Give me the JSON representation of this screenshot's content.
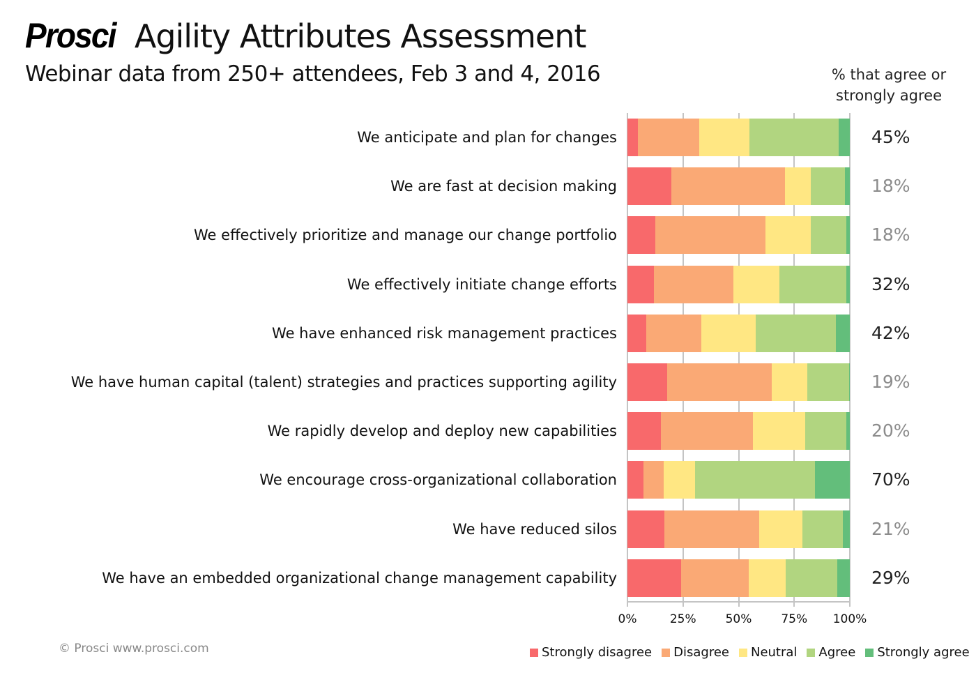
{
  "header": {
    "logo": "Prosci",
    "title": "Agility Attributes Assessment",
    "subtitle": "Webinar data from 250+ attendees, Feb 3 and 4, 2016",
    "agree_column_header": "% that agree or strongly agree"
  },
  "footer": {
    "copyright": "© Prosci www.prosci.com"
  },
  "colors": {
    "strongly_disagree": "#F8696B",
    "disagree": "#FAA975",
    "neutral": "#FFE783",
    "agree": "#B1D580",
    "strongly_agree": "#63BE7B",
    "pct_dark": "#222222",
    "pct_light": "#8C8C8C",
    "grid": "#C4C4C4"
  },
  "chart_data": {
    "type": "bar",
    "orientation": "horizontal",
    "stacked": "100%",
    "title": "Agility Attributes Assessment",
    "subtitle": "Webinar data from 250+ attendees, Feb 3 and 4, 2016",
    "xlabel": "",
    "ylabel": "",
    "xlim": [
      0,
      100
    ],
    "x_ticks": [
      "0%",
      "25%",
      "50%",
      "75%",
      "100%"
    ],
    "grid": true,
    "legend_position": "bottom-right",
    "categories": [
      "We anticipate and plan for changes",
      "We are fast at decision making",
      "We effectively prioritize and manage our change portfolio",
      "We effectively initiate change efforts",
      "We have enhanced risk management practices",
      "We have human capital (talent) strategies and practices supporting agility",
      "We rapidly develop and deploy new capabilities",
      "We encourage cross-organizational collaboration",
      "We have reduced silos",
      "We have an embedded organizational change management capability"
    ],
    "series": [
      {
        "name": "Strongly disagree",
        "color": "#F8696B",
        "values": [
          4.7,
          19.7,
          12.5,
          11.9,
          8.5,
          17.9,
          15.0,
          7.2,
          16.6,
          24.1
        ]
      },
      {
        "name": "Disagree",
        "color": "#FAA975",
        "values": [
          27.6,
          51.1,
          49.5,
          35.7,
          24.8,
          47.0,
          41.4,
          9.1,
          42.6,
          30.4
        ]
      },
      {
        "name": "Neutral",
        "color": "#FFE783",
        "values": [
          22.6,
          11.6,
          20.4,
          20.7,
          24.5,
          16.0,
          23.5,
          14.1,
          19.4,
          16.6
        ]
      },
      {
        "name": "Agree",
        "color": "#B1D580",
        "values": [
          40.1,
          15.4,
          16.0,
          30.1,
          36.0,
          18.8,
          18.5,
          53.9,
          18.2,
          23.2
        ]
      },
      {
        "name": "Strongly agree",
        "color": "#63BE7B",
        "values": [
          5.0,
          2.2,
          1.6,
          1.6,
          6.3,
          0.3,
          1.6,
          15.7,
          3.1,
          5.6
        ]
      }
    ],
    "annotations": {
      "header": "% that agree or strongly agree",
      "values": [
        "45%",
        "18%",
        "18%",
        "32%",
        "42%",
        "19%",
        "20%",
        "70%",
        "21%",
        "29%"
      ],
      "emphasis": [
        "dark",
        "light",
        "light",
        "dark",
        "dark",
        "light",
        "light",
        "dark",
        "light",
        "dark"
      ]
    }
  }
}
